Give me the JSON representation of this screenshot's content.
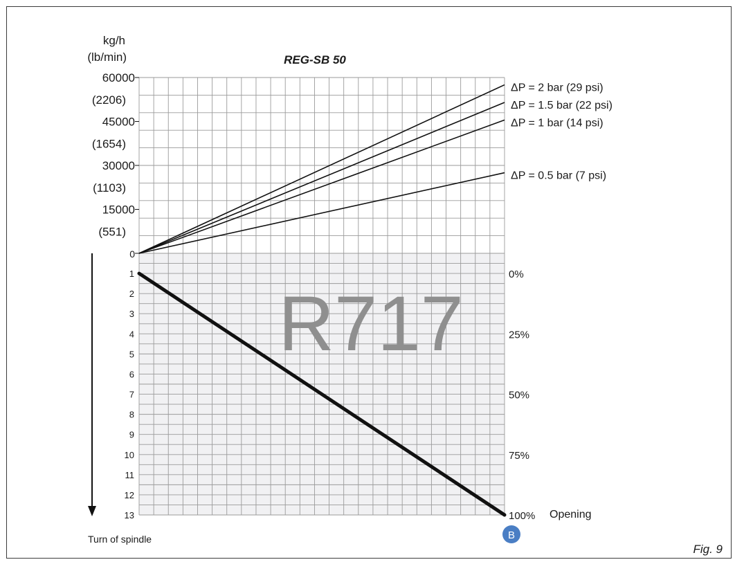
{
  "chart_data": [
    {
      "type": "line",
      "title": "REG-SB 50",
      "ylabel_lines": [
        "kg/h",
        "(lb/min)"
      ],
      "ylim": [
        0,
        60000
      ],
      "y_ticks": [
        {
          "value": 60000,
          "label": "60000",
          "sublabel": "(2206)"
        },
        {
          "value": 45000,
          "label": "45000",
          "sublabel": "(1654)"
        },
        {
          "value": 30000,
          "label": "30000",
          "sublabel": "(1103)"
        },
        {
          "value": 15000,
          "label": "15000",
          "sublabel": "(551)"
        },
        {
          "value": 0,
          "label": "0",
          "sublabel": ""
        }
      ],
      "x": [
        0,
        13
      ],
      "series": [
        {
          "name": "ΔP = 2 bar (29 psi)",
          "values": [
            0,
            57500
          ]
        },
        {
          "name": "ΔP = 1.5 bar (22 psi)",
          "values": [
            0,
            51500
          ]
        },
        {
          "name": "ΔP = 1 bar (14 psi)",
          "values": [
            0,
            45500
          ]
        },
        {
          "name": "ΔP = 0.5 bar (7 psi)",
          "values": [
            0,
            27500
          ]
        }
      ],
      "grid": true,
      "legend": "right, at end of each line"
    },
    {
      "type": "line",
      "ylabel": "Turn of spindle",
      "turn_ticks": [
        "0",
        "1",
        "2",
        "3",
        "4",
        "5",
        "6",
        "7",
        "8",
        "9",
        "10",
        "11",
        "12",
        "13"
      ],
      "opening_labels": [
        {
          "turn": 1,
          "label": "0%"
        },
        {
          "turn": 4,
          "label": "25%"
        },
        {
          "turn": 7,
          "label": "50%"
        },
        {
          "turn": 10,
          "label": "75%"
        },
        {
          "turn": 13,
          "label": "100%"
        }
      ],
      "opening_axis_label": "Opening",
      "series": [
        {
          "name": "",
          "points": [
            {
              "opening": 0,
              "turn": 1
            },
            {
              "opening": 100,
              "turn": 13
            }
          ]
        }
      ],
      "marker": "B",
      "watermark": "R717",
      "grid": true
    }
  ],
  "figure_caption": "Fig. 9",
  "colors": {
    "line": "#111111",
    "grid": "#9a9a9a",
    "shade": "#f1f1f3",
    "marker": "#4a7ec4",
    "watermark": "#8f8f8f"
  }
}
